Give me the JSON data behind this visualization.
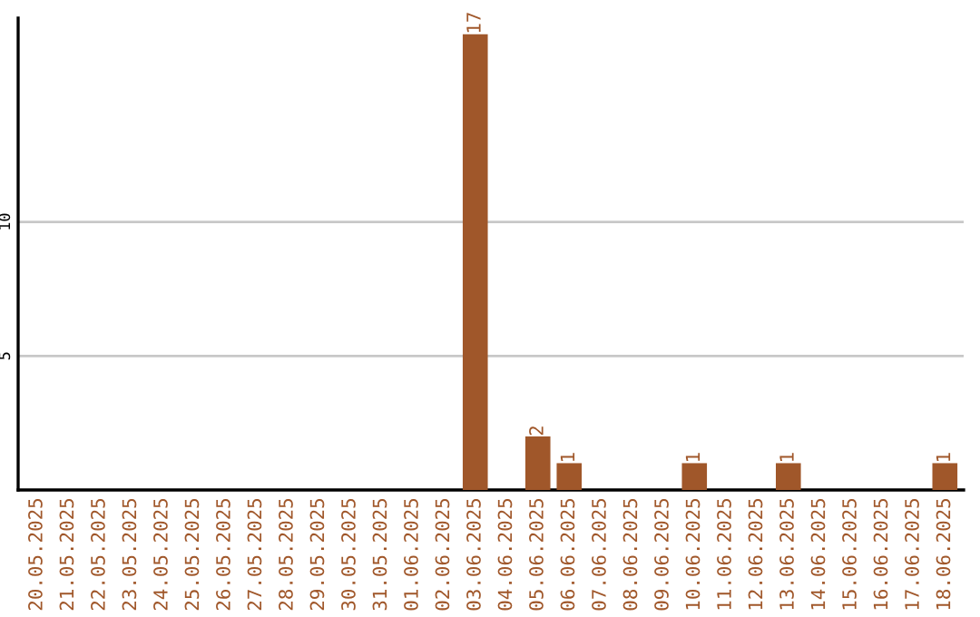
{
  "chart_data": {
    "type": "bar",
    "categories": [
      "20.05.2025",
      "21.05.2025",
      "22.05.2025",
      "23.05.2025",
      "24.05.2025",
      "25.05.2025",
      "26.05.2025",
      "27.05.2025",
      "28.05.2025",
      "29.05.2025",
      "30.05.2025",
      "31.05.2025",
      "01.06.2025",
      "02.06.2025",
      "03.06.2025",
      "04.06.2025",
      "05.06.2025",
      "06.06.2025",
      "07.06.2025",
      "08.06.2025",
      "09.06.2025",
      "10.06.2025",
      "11.06.2025",
      "12.06.2025",
      "13.06.2025",
      "14.06.2025",
      "15.06.2025",
      "16.06.2025",
      "17.06.2025",
      "18.06.2025"
    ],
    "values": [
      0,
      0,
      0,
      0,
      0,
      0,
      0,
      0,
      0,
      0,
      0,
      0,
      0,
      0,
      17,
      0,
      2,
      1,
      0,
      0,
      0,
      1,
      0,
      0,
      1,
      0,
      0,
      0,
      0,
      1
    ],
    "value_labels": [
      null,
      null,
      null,
      null,
      null,
      null,
      null,
      null,
      null,
      null,
      null,
      null,
      null,
      null,
      "17",
      null,
      "2",
      "1",
      null,
      null,
      null,
      "1",
      null,
      null,
      "1",
      null,
      null,
      null,
      null,
      "1"
    ],
    "color": "#a0572a",
    "ylim": [
      0,
      17.6
    ],
    "yticks": [
      5,
      10
    ],
    "grid": "y",
    "legend": false
  }
}
